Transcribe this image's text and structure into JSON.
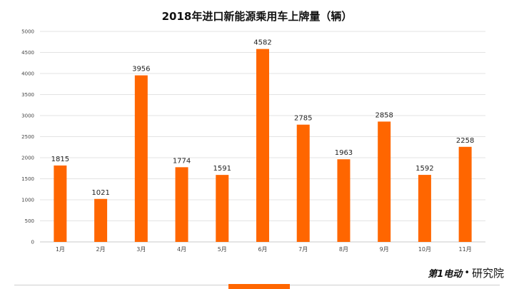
{
  "chart_data": {
    "type": "bar",
    "title": "2018年进口新能源乘用车上牌量（辆）",
    "categories": [
      "1月",
      "2月",
      "3月",
      "4月",
      "5月",
      "6月",
      "7月",
      "8月",
      "9月",
      "10月",
      "11月"
    ],
    "values": [
      1815,
      1021,
      3956,
      1774,
      1591,
      4582,
      2785,
      1963,
      2858,
      1592,
      2258
    ],
    "ylim": [
      0,
      5000
    ],
    "yticks": [
      0,
      500,
      1000,
      1500,
      2000,
      2500,
      3000,
      3500,
      4000,
      4500,
      5000
    ],
    "grid": true,
    "bar_color": "#FF6600",
    "xlabel": "",
    "ylabel": ""
  },
  "branding": {
    "logo_text": "第1电动",
    "separator": "•",
    "text": "研究院"
  },
  "colors": {
    "accent": "#FF6600",
    "grid": "#E3E3E3",
    "axis": "#C8C8C8"
  }
}
